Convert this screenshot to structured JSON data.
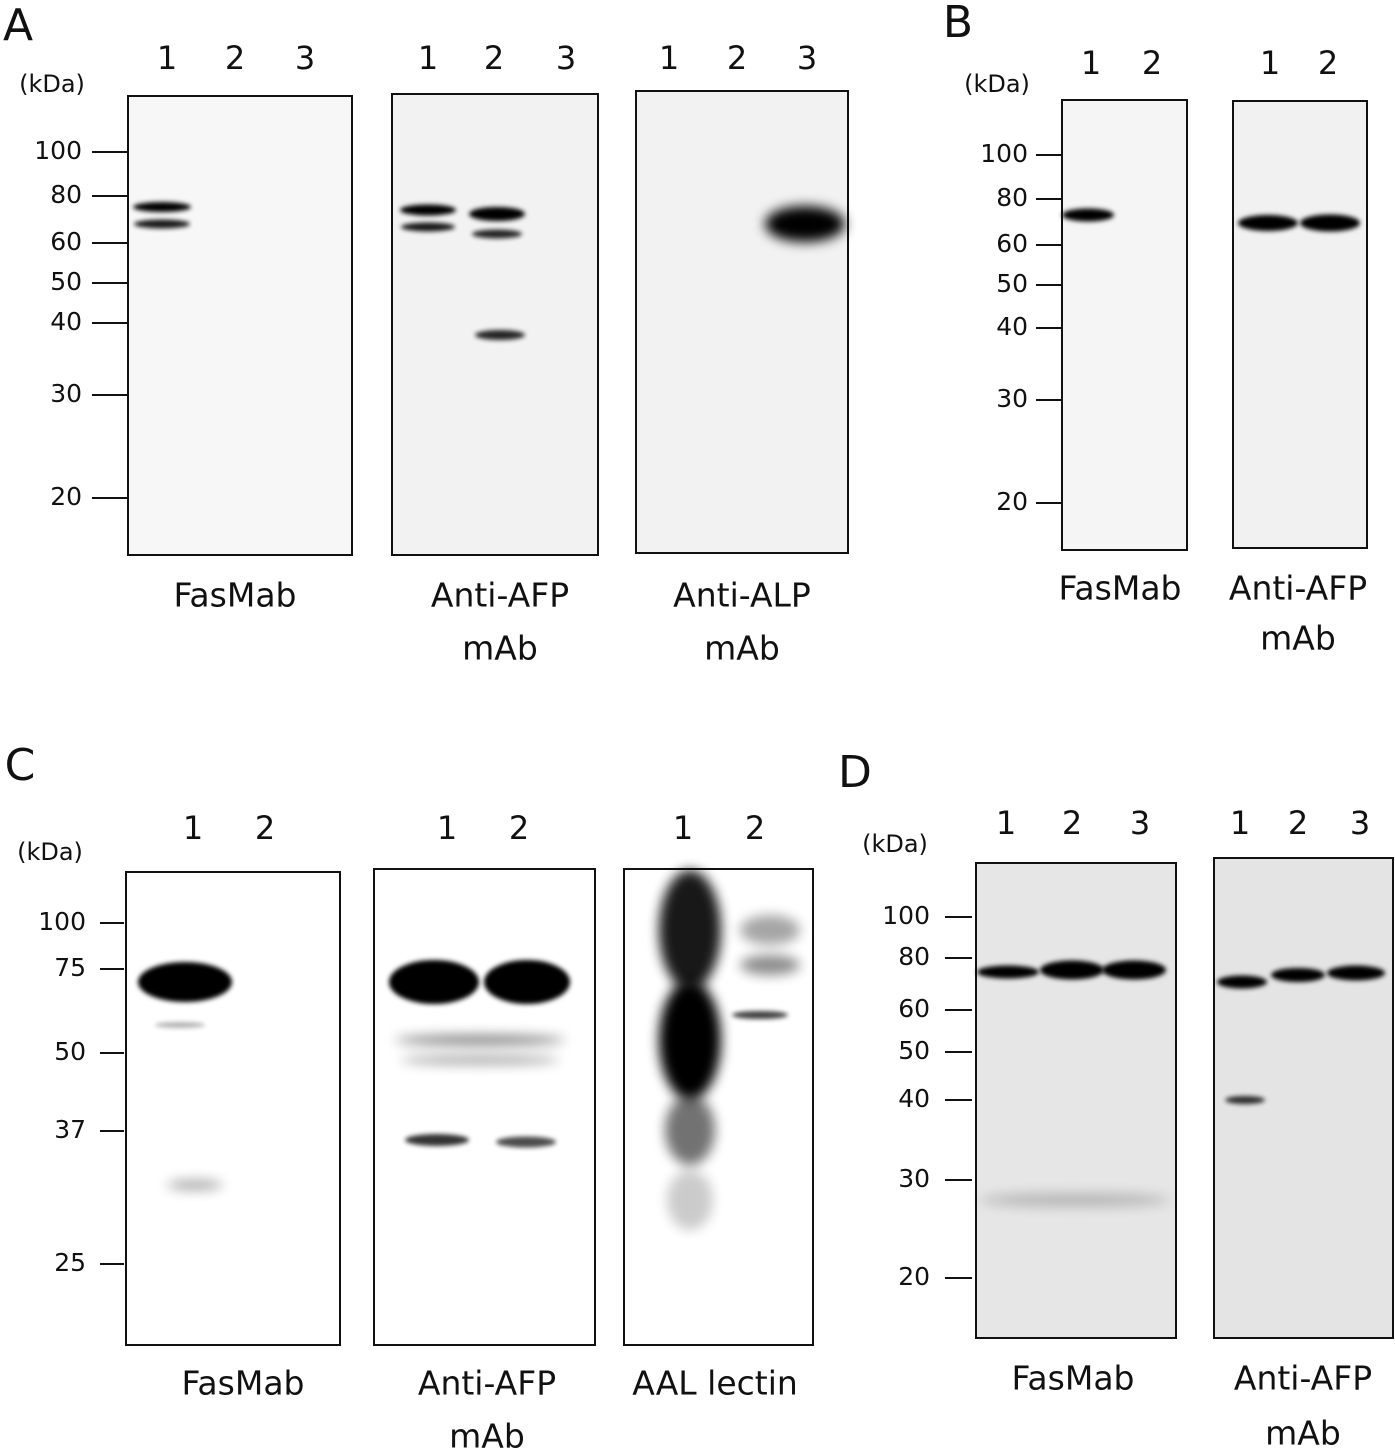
{
  "panels": [
    {
      "letter": "A",
      "unit": "(kDa)",
      "markers": [
        100,
        80,
        60,
        50,
        40,
        30,
        20
      ],
      "blots": [
        {
          "lanes": [
            "1",
            "2",
            "3"
          ],
          "caption": [
            "FasMab"
          ]
        },
        {
          "lanes": [
            "1",
            "2",
            "3"
          ],
          "caption": [
            "Anti-AFP",
            "mAb"
          ]
        },
        {
          "lanes": [
            "1",
            "2",
            "3"
          ],
          "caption": [
            "Anti-ALP",
            "mAb"
          ]
        }
      ]
    },
    {
      "letter": "B",
      "unit": "(kDa)",
      "markers": [
        100,
        80,
        60,
        50,
        40,
        30,
        20
      ],
      "blots": [
        {
          "lanes": [
            "1",
            "2"
          ],
          "caption": [
            "FasMab"
          ]
        },
        {
          "lanes": [
            "1",
            "2"
          ],
          "caption": [
            "Anti-AFP",
            "mAb"
          ]
        }
      ]
    },
    {
      "letter": "C",
      "unit": "(kDa)",
      "markers": [
        100,
        75,
        50,
        37,
        25
      ],
      "blots": [
        {
          "lanes": [
            "1",
            "2"
          ],
          "caption": [
            "FasMab"
          ]
        },
        {
          "lanes": [
            "1",
            "2"
          ],
          "caption": [
            "Anti-AFP",
            "mAb"
          ]
        },
        {
          "lanes": [
            "1",
            "2"
          ],
          "caption": [
            "AAL lectin"
          ]
        }
      ]
    },
    {
      "letter": "D",
      "unit": "(kDa)",
      "markers": [
        100,
        80,
        60,
        50,
        40,
        30,
        20
      ],
      "blots": [
        {
          "lanes": [
            "1",
            "2",
            "3"
          ],
          "caption": [
            "FasMab"
          ]
        },
        {
          "lanes": [
            "1",
            "2",
            "3"
          ],
          "caption": [
            "Anti-AFP",
            "mAb"
          ]
        }
      ]
    }
  ]
}
